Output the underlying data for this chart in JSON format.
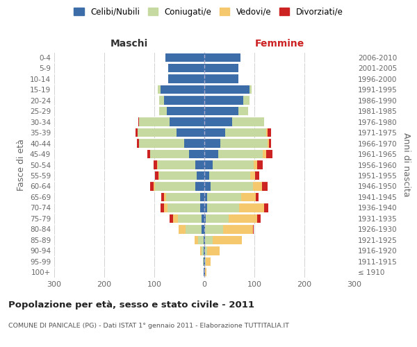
{
  "age_groups": [
    "100+",
    "95-99",
    "90-94",
    "85-89",
    "80-84",
    "75-79",
    "70-74",
    "65-69",
    "60-64",
    "55-59",
    "50-54",
    "45-49",
    "40-44",
    "35-39",
    "30-34",
    "25-29",
    "20-24",
    "15-19",
    "10-14",
    "5-9",
    "0-4"
  ],
  "birth_years": [
    "≤ 1910",
    "1911-1915",
    "1916-1920",
    "1921-1925",
    "1926-1930",
    "1931-1935",
    "1936-1940",
    "1941-1945",
    "1946-1950",
    "1951-1955",
    "1956-1960",
    "1961-1965",
    "1966-1970",
    "1971-1975",
    "1976-1980",
    "1981-1985",
    "1986-1990",
    "1991-1995",
    "1996-2000",
    "2001-2005",
    "2006-2010"
  ],
  "male_celibi": [
    1,
    1,
    1,
    2,
    5,
    5,
    8,
    8,
    18,
    15,
    18,
    30,
    40,
    55,
    70,
    75,
    80,
    88,
    72,
    72,
    78
  ],
  "male_coniugati": [
    0,
    2,
    4,
    10,
    32,
    48,
    65,
    68,
    80,
    75,
    75,
    78,
    90,
    78,
    60,
    15,
    10,
    5,
    0,
    0,
    0
  ],
  "male_vedovi": [
    0,
    0,
    3,
    8,
    14,
    10,
    8,
    5,
    3,
    2,
    2,
    1,
    1,
    1,
    0,
    0,
    0,
    0,
    0,
    0,
    0
  ],
  "male_divorziati": [
    0,
    0,
    0,
    0,
    0,
    6,
    6,
    5,
    8,
    6,
    7,
    5,
    4,
    4,
    2,
    0,
    0,
    0,
    0,
    0,
    0
  ],
  "female_nubili": [
    1,
    2,
    1,
    2,
    2,
    3,
    5,
    5,
    12,
    10,
    16,
    28,
    32,
    42,
    55,
    68,
    78,
    90,
    68,
    68,
    72
  ],
  "female_coniugate": [
    0,
    1,
    5,
    15,
    35,
    45,
    65,
    68,
    85,
    82,
    82,
    88,
    95,
    82,
    65,
    20,
    12,
    5,
    0,
    0,
    0
  ],
  "female_vedove": [
    3,
    10,
    25,
    58,
    60,
    58,
    50,
    30,
    18,
    10,
    8,
    8,
    2,
    2,
    0,
    0,
    0,
    0,
    0,
    0,
    0
  ],
  "female_divorziate": [
    0,
    0,
    0,
    0,
    2,
    6,
    8,
    5,
    12,
    8,
    10,
    12,
    5,
    8,
    0,
    0,
    0,
    0,
    0,
    0,
    0
  ],
  "colors": {
    "celibi": "#3c6da8",
    "coniugati": "#c5d9a0",
    "vedovi": "#f5c86e",
    "divorziati": "#cc2222"
  },
  "title": "Popolazione per età, sesso e stato civile - 2011",
  "subtitle": "COMUNE DI PANICALE (PG) - Dati ISTAT 1° gennaio 2011 - Elaborazione TUTTITALIA.IT",
  "xlabel_left": "Maschi",
  "xlabel_right": "Femmine",
  "ylabel_left": "Fasce di età",
  "ylabel_right": "Anni di nascita",
  "xlim": 300,
  "legend_labels": [
    "Celibi/Nubili",
    "Coniugati/e",
    "Vedovi/e",
    "Divorziati/e"
  ],
  "background_color": "#ffffff",
  "grid_color": "#cccccc"
}
